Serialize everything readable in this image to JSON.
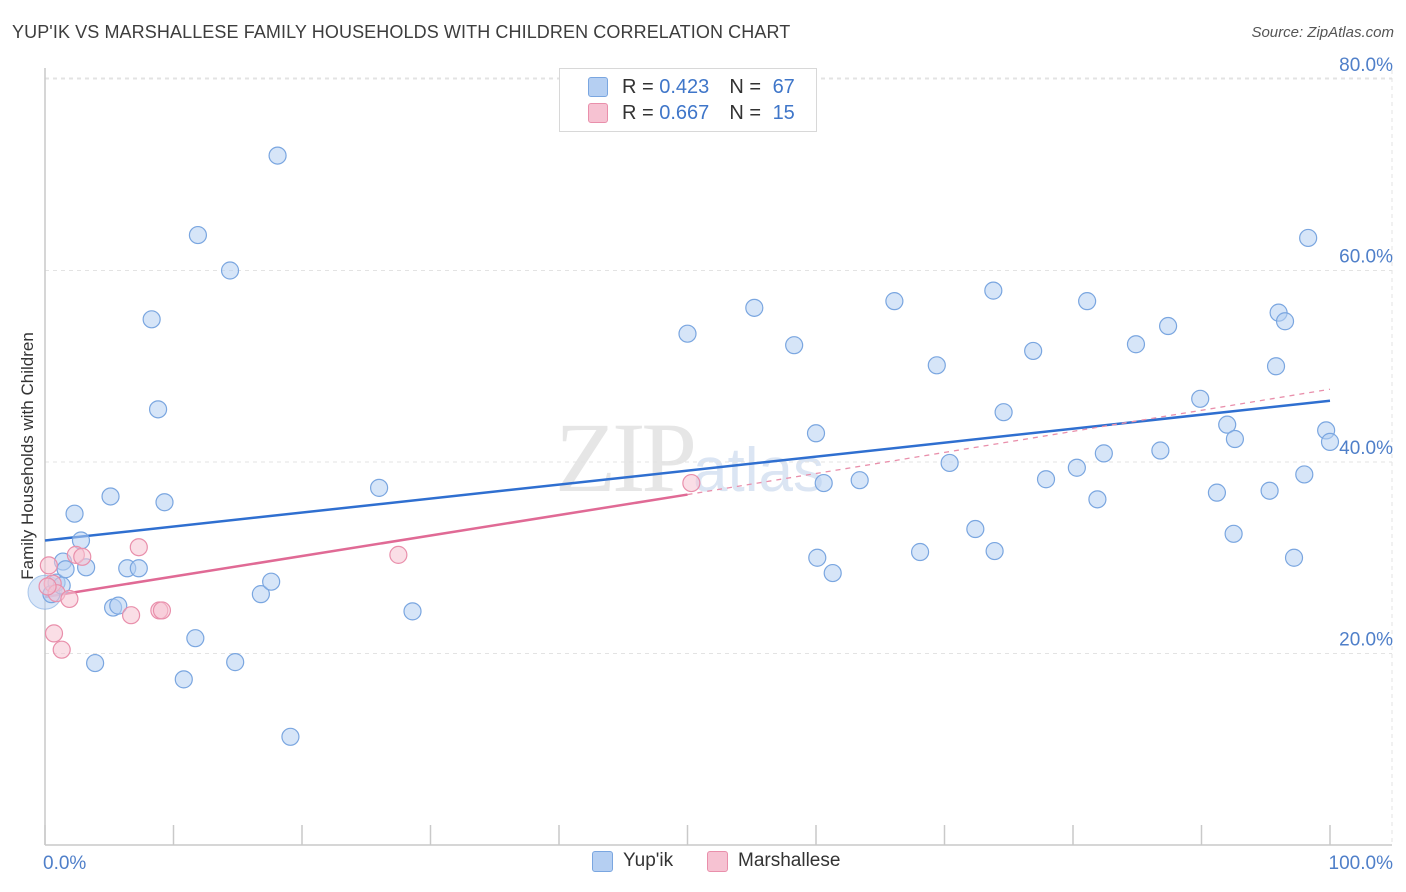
{
  "title": "YUP'IK VS MARSHALLESE FAMILY HOUSEHOLDS WITH CHILDREN CORRELATION CHART",
  "source": "Source: ZipAtlas.com",
  "watermark": {
    "main": "ZIP",
    "sub": "atlas"
  },
  "colors": {
    "blue_fill": "#b5cff2",
    "blue_stroke": "#7aa6e0",
    "blue_line": "#2f6fd0",
    "pink_fill": "#f6c2d2",
    "pink_stroke": "#e98fab",
    "pink_line": "#e06a95",
    "grid": "#e3e3e3",
    "axis_text": "#4f7fc9"
  },
  "legend": {
    "series": [
      {
        "name": "Yup'ik",
        "r_label": "R = ",
        "r_value": "0.423",
        "n_label": "N = ",
        "n_value": "67"
      },
      {
        "name": "Marshallese",
        "r_label": "R = ",
        "r_value": "0.667",
        "n_label": "N = ",
        "n_value": "15"
      }
    ]
  },
  "chart_data": {
    "type": "scatter",
    "title": "YUP'IK VS MARSHALLESE FAMILY HOUSEHOLDS WITH CHILDREN CORRELATION CHART",
    "xlabel": "",
    "ylabel": "Family Households with Children",
    "xlim": [
      0,
      100
    ],
    "ylim": [
      0,
      82
    ],
    "x_ticks": [
      "0.0%",
      "100.0%"
    ],
    "y_ticks": [
      {
        "value": 20,
        "label": "20.0%"
      },
      {
        "value": 40,
        "label": "40.0%"
      },
      {
        "value": 60,
        "label": "60.0%"
      },
      {
        "value": 80,
        "label": "80.0%"
      }
    ],
    "gridlines": true,
    "legend_position": "top-center",
    "series": [
      {
        "name": "Yup'ik",
        "points": [
          [
            0.5,
            26.2
          ],
          [
            0.9,
            27.4
          ],
          [
            1.3,
            27.1
          ],
          [
            1.4,
            29.6
          ],
          [
            1.6,
            28.8
          ],
          [
            2.3,
            34.6
          ],
          [
            2.8,
            31.8
          ],
          [
            3.2,
            29.0
          ],
          [
            3.9,
            19.0
          ],
          [
            5.1,
            36.4
          ],
          [
            5.3,
            24.8
          ],
          [
            5.7,
            25.0
          ],
          [
            6.4,
            28.9
          ],
          [
            7.3,
            28.9
          ],
          [
            8.3,
            54.9
          ],
          [
            8.8,
            45.5
          ],
          [
            9.3,
            35.8
          ],
          [
            10.8,
            17.3
          ],
          [
            11.7,
            21.6
          ],
          [
            11.9,
            63.7
          ],
          [
            14.4,
            60.0
          ],
          [
            14.8,
            19.1
          ],
          [
            16.8,
            26.2
          ],
          [
            17.6,
            27.5
          ],
          [
            18.1,
            72.0
          ],
          [
            19.1,
            11.3
          ],
          [
            26.0,
            37.3
          ],
          [
            28.6,
            24.4
          ],
          [
            50.0,
            53.4
          ],
          [
            55.2,
            56.1
          ],
          [
            58.3,
            52.2
          ],
          [
            60.0,
            43.0
          ],
          [
            60.1,
            30.0
          ],
          [
            60.6,
            37.8
          ],
          [
            61.3,
            28.4
          ],
          [
            63.4,
            38.1
          ],
          [
            66.1,
            56.8
          ],
          [
            68.1,
            30.6
          ],
          [
            69.4,
            50.1
          ],
          [
            70.4,
            39.9
          ],
          [
            72.4,
            33.0
          ],
          [
            73.8,
            57.9
          ],
          [
            73.9,
            30.7
          ],
          [
            74.6,
            45.2
          ],
          [
            76.9,
            51.6
          ],
          [
            77.9,
            38.2
          ],
          [
            80.3,
            39.4
          ],
          [
            81.1,
            56.8
          ],
          [
            81.9,
            36.1
          ],
          [
            82.4,
            40.9
          ],
          [
            84.9,
            52.3
          ],
          [
            86.8,
            41.2
          ],
          [
            87.4,
            54.2
          ],
          [
            89.9,
            46.6
          ],
          [
            91.2,
            36.8
          ],
          [
            92.0,
            43.9
          ],
          [
            92.5,
            32.5
          ],
          [
            92.6,
            42.4
          ],
          [
            95.3,
            37.0
          ],
          [
            95.8,
            50.0
          ],
          [
            96.0,
            55.6
          ],
          [
            96.5,
            54.7
          ],
          [
            97.2,
            30.0
          ],
          [
            98.0,
            38.7
          ],
          [
            98.3,
            63.4
          ],
          [
            99.7,
            43.3
          ],
          [
            100.0,
            42.1
          ]
        ],
        "trend": {
          "x0": 0,
          "y0": 31.8,
          "x1": 100,
          "y1": 46.4
        }
      },
      {
        "name": "Marshallese",
        "points": [
          [
            0.3,
            29.2
          ],
          [
            0.6,
            27.3
          ],
          [
            0.7,
            22.1
          ],
          [
            0.9,
            26.3
          ],
          [
            1.3,
            20.4
          ],
          [
            1.9,
            25.7
          ],
          [
            2.4,
            30.3
          ],
          [
            2.9,
            30.1
          ],
          [
            6.7,
            24.0
          ],
          [
            7.3,
            31.1
          ],
          [
            8.9,
            24.5
          ],
          [
            9.1,
            24.5
          ],
          [
            27.5,
            30.3
          ],
          [
            50.3,
            37.8
          ],
          [
            0.2,
            27.0
          ]
        ],
        "trend": {
          "x0": 0,
          "y0": 25.9,
          "x1": 50,
          "y1": 36.6
        },
        "trend_extension": {
          "x0": 50,
          "y0": 36.6,
          "x1": 100,
          "y1": 47.6
        }
      }
    ]
  }
}
